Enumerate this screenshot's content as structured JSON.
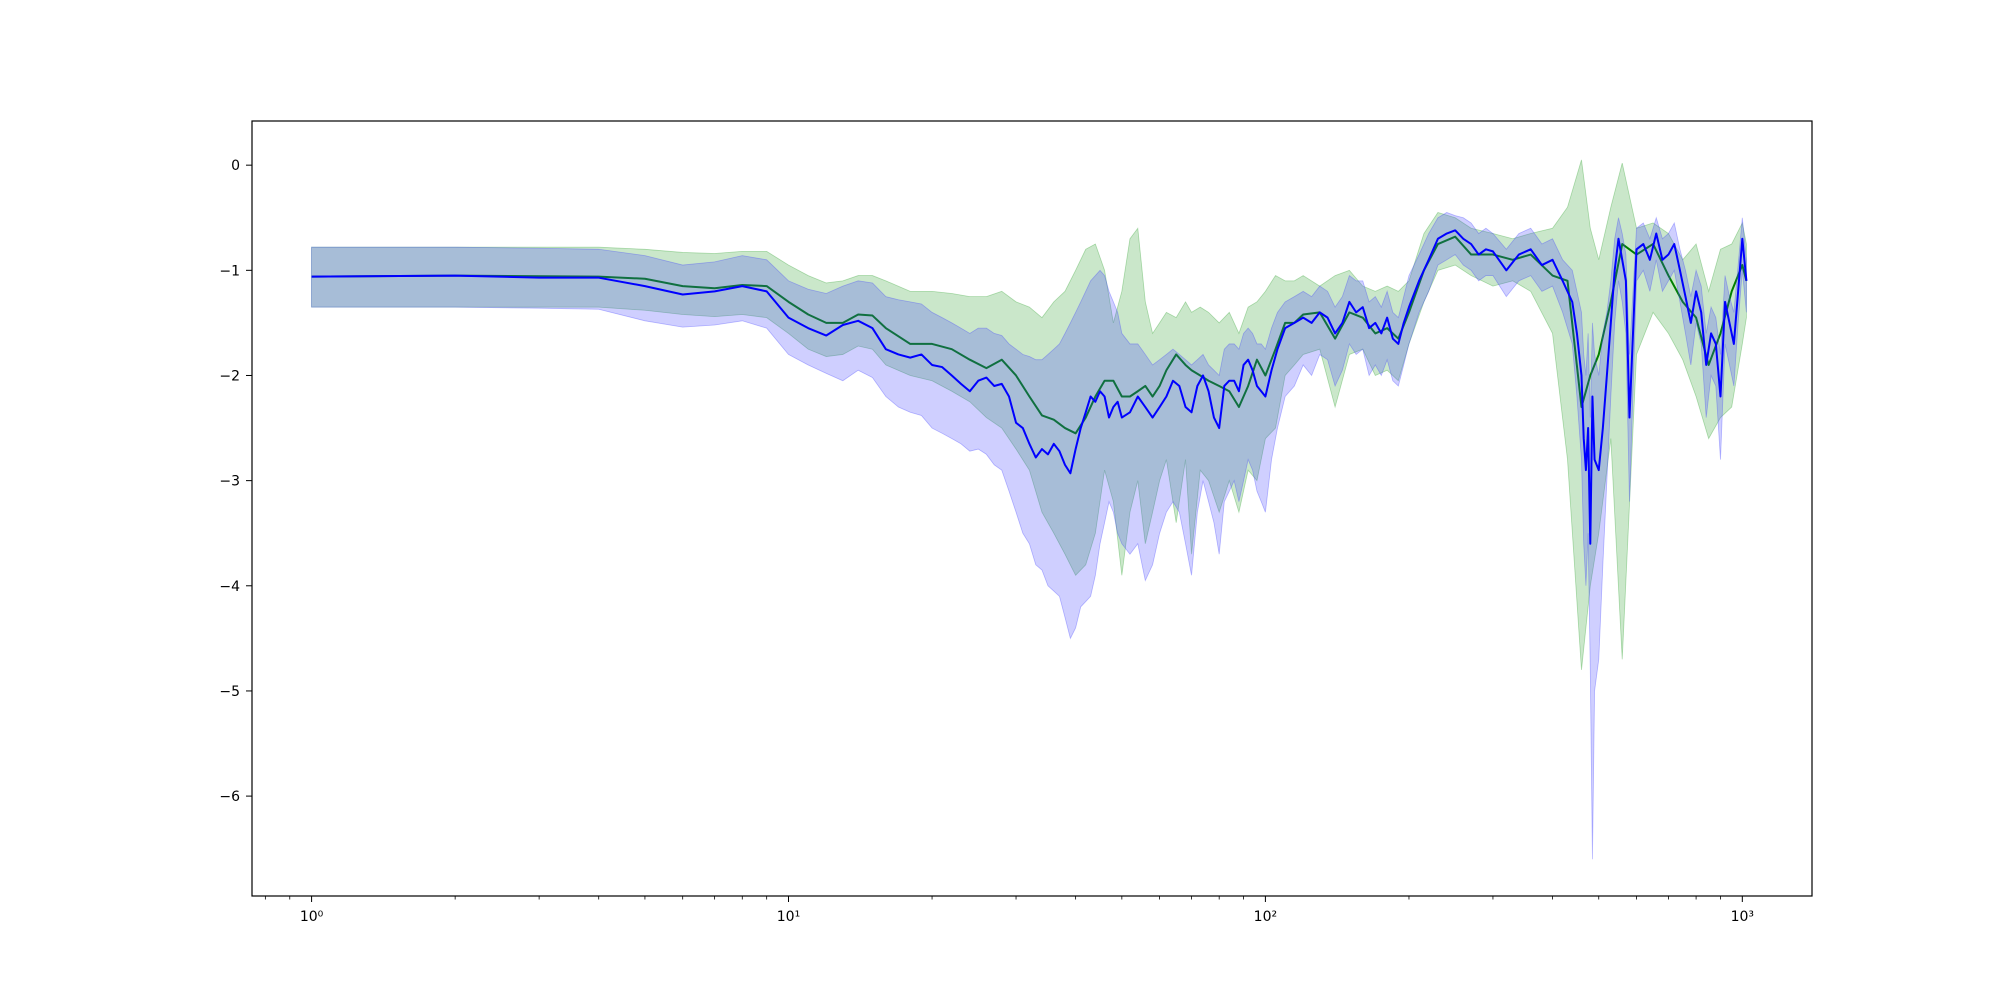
{
  "chart_data": {
    "type": "line",
    "title": "",
    "xlabel": "",
    "ylabel": "",
    "x_scale": "log",
    "xlim": [
      0.75,
      1400
    ],
    "ylim": [
      -6.95,
      0.42
    ],
    "grid": false,
    "legend": "none",
    "x_ticks": [
      {
        "value": 1,
        "label": "10⁰"
      },
      {
        "value": 10,
        "label": "10¹"
      },
      {
        "value": 100,
        "label": "10²"
      },
      {
        "value": 1000,
        "label": "10³"
      }
    ],
    "y_ticks": [
      {
        "value": 0,
        "label": "0"
      },
      {
        "value": -1,
        "label": "−1"
      },
      {
        "value": -2,
        "label": "−2"
      },
      {
        "value": -3,
        "label": "−3"
      },
      {
        "value": -4,
        "label": "−4"
      },
      {
        "value": -5,
        "label": "−5"
      },
      {
        "value": -6,
        "label": "−6"
      }
    ],
    "series": [
      {
        "color": "#008000",
        "band_color": "#2ca02c",
        "band_opacity": 0.25,
        "x": [
          1,
          2,
          4,
          5,
          6,
          7,
          8,
          9,
          10,
          11,
          12,
          13,
          14,
          15,
          16,
          18,
          20,
          22,
          24,
          26,
          28,
          30,
          32,
          34,
          36,
          38,
          40,
          42,
          44,
          46,
          48,
          50,
          52,
          54,
          56,
          58,
          60,
          62,
          65,
          68,
          70,
          73,
          76,
          80,
          84,
          88,
          92,
          96,
          100,
          105,
          110,
          115,
          120,
          130,
          140,
          150,
          160,
          170,
          180,
          190,
          200,
          215,
          230,
          250,
          270,
          300,
          330,
          360,
          400,
          430,
          460,
          480,
          500,
          530,
          560,
          600,
          650,
          700,
          750,
          800,
          850,
          900,
          950,
          1000,
          1020
        ],
        "y": [
          -1.06,
          -1.05,
          -1.06,
          -1.08,
          -1.15,
          -1.17,
          -1.14,
          -1.15,
          -1.3,
          -1.42,
          -1.5,
          -1.5,
          -1.42,
          -1.43,
          -1.55,
          -1.7,
          -1.7,
          -1.75,
          -1.85,
          -1.93,
          -1.85,
          -2.0,
          -2.2,
          -2.38,
          -2.42,
          -2.5,
          -2.55,
          -2.4,
          -2.2,
          -2.05,
          -2.05,
          -2.2,
          -2.2,
          -2.15,
          -2.1,
          -2.2,
          -2.1,
          -1.95,
          -1.8,
          -1.9,
          -1.95,
          -2.0,
          -2.05,
          -2.1,
          -2.15,
          -2.3,
          -2.1,
          -1.85,
          -2.0,
          -1.75,
          -1.5,
          -1.5,
          -1.42,
          -1.4,
          -1.65,
          -1.4,
          -1.45,
          -1.6,
          -1.55,
          -1.65,
          -1.4,
          -1.0,
          -0.75,
          -0.68,
          -0.85,
          -0.85,
          -0.9,
          -0.85,
          -1.05,
          -1.1,
          -2.3,
          -2.0,
          -1.8,
          -1.3,
          -0.75,
          -0.85,
          -0.75,
          -1.05,
          -1.3,
          -1.45,
          -1.9,
          -1.6,
          -1.2,
          -0.95,
          -1.1
        ],
        "upper": [
          -0.78,
          -0.78,
          -0.78,
          -0.8,
          -0.83,
          -0.84,
          -0.82,
          -0.82,
          -0.95,
          -1.05,
          -1.12,
          -1.1,
          -1.05,
          -1.05,
          -1.1,
          -1.2,
          -1.2,
          -1.22,
          -1.25,
          -1.25,
          -1.2,
          -1.3,
          -1.35,
          -1.45,
          -1.3,
          -1.2,
          -1.0,
          -0.8,
          -0.75,
          -1.0,
          -1.5,
          -1.2,
          -0.7,
          -0.6,
          -1.3,
          -1.6,
          -1.5,
          -1.4,
          -1.45,
          -1.3,
          -1.4,
          -1.35,
          -1.4,
          -1.5,
          -1.4,
          -1.6,
          -1.35,
          -1.3,
          -1.2,
          -1.05,
          -1.1,
          -1.1,
          -1.05,
          -1.15,
          -1.05,
          -1.0,
          -1.15,
          -1.2,
          -1.15,
          -1.2,
          -1.1,
          -0.65,
          -0.45,
          -0.5,
          -0.6,
          -0.65,
          -0.7,
          -0.65,
          -0.6,
          -0.4,
          0.05,
          -0.6,
          -0.9,
          -0.4,
          0.02,
          -0.6,
          -0.55,
          -0.65,
          -0.9,
          -0.75,
          -1.2,
          -0.8,
          -0.75,
          -0.55,
          -0.75
        ],
        "lower": [
          -1.35,
          -1.35,
          -1.35,
          -1.38,
          -1.42,
          -1.44,
          -1.42,
          -1.45,
          -1.6,
          -1.75,
          -1.82,
          -1.8,
          -1.72,
          -1.75,
          -1.9,
          -2.0,
          -2.05,
          -2.15,
          -2.25,
          -2.4,
          -2.5,
          -2.7,
          -2.9,
          -3.3,
          -3.5,
          -3.7,
          -3.9,
          -3.8,
          -3.5,
          -2.9,
          -3.2,
          -3.9,
          -3.3,
          -3.0,
          -3.6,
          -3.3,
          -3.0,
          -2.8,
          -3.4,
          -2.8,
          -3.7,
          -2.9,
          -3.0,
          -3.3,
          -3.0,
          -3.3,
          -2.9,
          -3.0,
          -2.6,
          -2.5,
          -2.0,
          -1.9,
          -1.8,
          -1.75,
          -2.3,
          -1.8,
          -1.75,
          -2.0,
          -1.95,
          -2.05,
          -1.7,
          -1.3,
          -1.0,
          -0.95,
          -1.05,
          -1.15,
          -1.1,
          -1.2,
          -1.6,
          -2.8,
          -4.8,
          -4.0,
          -3.5,
          -2.6,
          -4.7,
          -1.8,
          -1.4,
          -1.6,
          -1.85,
          -2.2,
          -2.6,
          -2.4,
          -2.3,
          -1.7,
          -1.45
        ]
      },
      {
        "color": "#0000ff",
        "band_color": "#4040ff",
        "band_opacity": 0.25,
        "x": [
          1,
          2,
          3,
          4,
          5,
          6,
          7,
          8,
          9,
          10,
          11,
          12,
          13,
          14,
          15,
          16,
          17,
          18,
          19,
          20,
          21,
          22,
          23,
          24,
          25,
          26,
          27,
          28,
          29,
          30,
          31,
          32,
          33,
          34,
          35,
          36,
          37,
          38,
          39,
          40,
          41,
          42,
          43,
          44,
          45,
          46,
          47,
          48,
          49,
          50,
          52,
          54,
          56,
          58,
          60,
          62,
          64,
          66,
          68,
          70,
          72,
          74,
          76,
          78,
          80,
          82,
          84,
          86,
          88,
          90,
          92,
          94,
          96,
          98,
          100,
          103,
          106,
          110,
          115,
          120,
          125,
          130,
          135,
          140,
          145,
          150,
          155,
          160,
          165,
          170,
          175,
          180,
          185,
          190,
          195,
          200,
          210,
          220,
          230,
          240,
          250,
          260,
          270,
          280,
          290,
          300,
          320,
          340,
          360,
          380,
          400,
          420,
          440,
          450,
          460,
          465,
          470,
          475,
          480,
          485,
          490,
          500,
          510,
          520,
          530,
          540,
          550,
          560,
          570,
          580,
          600,
          620,
          640,
          660,
          680,
          700,
          720,
          740,
          760,
          780,
          800,
          820,
          840,
          860,
          880,
          900,
          920,
          940,
          960,
          980,
          1000,
          1010,
          1020
        ],
        "y": [
          -1.06,
          -1.05,
          -1.07,
          -1.07,
          -1.15,
          -1.23,
          -1.2,
          -1.15,
          -1.2,
          -1.45,
          -1.55,
          -1.62,
          -1.52,
          -1.48,
          -1.55,
          -1.75,
          -1.8,
          -1.83,
          -1.8,
          -1.9,
          -1.92,
          -2.0,
          -2.08,
          -2.15,
          -2.05,
          -2.02,
          -2.1,
          -2.08,
          -2.2,
          -2.45,
          -2.5,
          -2.65,
          -2.78,
          -2.7,
          -2.75,
          -2.65,
          -2.72,
          -2.85,
          -2.93,
          -2.7,
          -2.5,
          -2.35,
          -2.2,
          -2.25,
          -2.15,
          -2.2,
          -2.4,
          -2.3,
          -2.25,
          -2.4,
          -2.35,
          -2.2,
          -2.3,
          -2.4,
          -2.3,
          -2.2,
          -2.05,
          -2.1,
          -2.3,
          -2.35,
          -2.1,
          -2.0,
          -2.15,
          -2.4,
          -2.5,
          -2.1,
          -2.05,
          -2.05,
          -2.15,
          -1.9,
          -1.85,
          -1.95,
          -2.1,
          -2.15,
          -2.2,
          -1.95,
          -1.75,
          -1.55,
          -1.5,
          -1.45,
          -1.5,
          -1.4,
          -1.45,
          -1.6,
          -1.5,
          -1.3,
          -1.4,
          -1.35,
          -1.55,
          -1.5,
          -1.6,
          -1.45,
          -1.65,
          -1.7,
          -1.5,
          -1.35,
          -1.1,
          -0.9,
          -0.7,
          -0.65,
          -0.62,
          -0.7,
          -0.75,
          -0.85,
          -0.8,
          -0.82,
          -1.0,
          -0.85,
          -0.8,
          -0.95,
          -0.9,
          -1.1,
          -1.3,
          -1.6,
          -2.0,
          -2.6,
          -2.9,
          -2.5,
          -3.6,
          -2.2,
          -2.8,
          -2.9,
          -2.5,
          -2.0,
          -1.5,
          -1.0,
          -0.7,
          -0.9,
          -1.1,
          -2.4,
          -0.8,
          -0.75,
          -0.9,
          -0.65,
          -0.9,
          -0.85,
          -0.75,
          -1.0,
          -1.25,
          -1.5,
          -1.2,
          -1.4,
          -1.9,
          -1.6,
          -1.7,
          -2.2,
          -1.3,
          -1.5,
          -1.7,
          -1.2,
          -0.7,
          -0.9,
          -1.1
        ],
        "upper": [
          -0.78,
          -0.78,
          -0.79,
          -0.8,
          -0.86,
          -0.95,
          -0.92,
          -0.86,
          -0.9,
          -1.1,
          -1.18,
          -1.22,
          -1.15,
          -1.1,
          -1.12,
          -1.25,
          -1.28,
          -1.3,
          -1.32,
          -1.4,
          -1.45,
          -1.5,
          -1.55,
          -1.6,
          -1.55,
          -1.55,
          -1.6,
          -1.62,
          -1.7,
          -1.75,
          -1.8,
          -1.82,
          -1.85,
          -1.85,
          -1.8,
          -1.75,
          -1.7,
          -1.6,
          -1.5,
          -1.4,
          -1.3,
          -1.2,
          -1.1,
          -1.05,
          -1.0,
          -1.05,
          -1.2,
          -1.3,
          -1.4,
          -1.6,
          -1.7,
          -1.7,
          -1.8,
          -1.9,
          -1.85,
          -1.8,
          -1.75,
          -1.8,
          -1.85,
          -1.9,
          -1.85,
          -1.8,
          -1.9,
          -1.95,
          -2.0,
          -1.75,
          -1.7,
          -1.7,
          -1.75,
          -1.6,
          -1.55,
          -1.6,
          -1.7,
          -1.7,
          -1.75,
          -1.55,
          -1.4,
          -1.3,
          -1.25,
          -1.2,
          -1.25,
          -1.15,
          -1.2,
          -1.35,
          -1.25,
          -1.05,
          -1.1,
          -1.1,
          -1.3,
          -1.25,
          -1.35,
          -1.2,
          -1.4,
          -1.45,
          -1.25,
          -1.05,
          -0.85,
          -0.65,
          -0.5,
          -0.45,
          -0.48,
          -0.5,
          -0.55,
          -0.65,
          -0.6,
          -0.65,
          -0.8,
          -0.65,
          -0.6,
          -0.75,
          -0.7,
          -0.9,
          -1.0,
          -1.2,
          -1.4,
          -1.8,
          -2.0,
          -1.6,
          -2.4,
          -1.5,
          -1.8,
          -2.0,
          -1.6,
          -1.4,
          -1.1,
          -0.7,
          -0.5,
          -0.65,
          -0.85,
          -1.8,
          -0.6,
          -0.55,
          -0.7,
          -0.5,
          -0.7,
          -0.65,
          -0.55,
          -0.8,
          -1.0,
          -1.25,
          -1.0,
          -1.15,
          -1.6,
          -1.35,
          -1.45,
          -1.8,
          -1.05,
          -1.25,
          -1.4,
          -0.95,
          -0.5,
          -0.7,
          -0.9
        ],
        "lower": [
          -1.35,
          -1.35,
          -1.36,
          -1.37,
          -1.48,
          -1.54,
          -1.52,
          -1.48,
          -1.55,
          -1.8,
          -1.9,
          -1.98,
          -2.05,
          -1.95,
          -2.02,
          -2.2,
          -2.3,
          -2.35,
          -2.38,
          -2.5,
          -2.55,
          -2.6,
          -2.65,
          -2.72,
          -2.7,
          -2.75,
          -2.85,
          -2.9,
          -3.1,
          -3.3,
          -3.5,
          -3.6,
          -3.8,
          -3.85,
          -4.0,
          -4.05,
          -4.1,
          -4.3,
          -4.5,
          -4.4,
          -4.2,
          -4.15,
          -4.1,
          -3.9,
          -3.6,
          -3.4,
          -3.2,
          -3.3,
          -3.5,
          -3.6,
          -3.7,
          -3.6,
          -3.95,
          -3.8,
          -3.5,
          -3.3,
          -3.2,
          -3.3,
          -3.6,
          -3.9,
          -3.3,
          -3.0,
          -3.2,
          -3.4,
          -3.7,
          -3.2,
          -3.1,
          -3.0,
          -3.2,
          -3.0,
          -2.8,
          -2.9,
          -3.1,
          -3.2,
          -3.3,
          -2.8,
          -2.5,
          -2.2,
          -2.1,
          -1.9,
          -2.0,
          -1.8,
          -1.85,
          -2.1,
          -1.95,
          -1.7,
          -1.8,
          -1.75,
          -2.0,
          -1.9,
          -2.0,
          -1.85,
          -2.05,
          -2.1,
          -1.9,
          -1.7,
          -1.4,
          -1.2,
          -0.95,
          -0.9,
          -0.85,
          -0.95,
          -1.0,
          -1.1,
          -1.05,
          -1.05,
          -1.25,
          -1.1,
          -1.05,
          -1.2,
          -1.15,
          -1.4,
          -1.7,
          -2.2,
          -2.8,
          -3.6,
          -4.0,
          -3.5,
          -4.8,
          -6.6,
          -5.0,
          -4.7,
          -3.8,
          -3.0,
          -2.2,
          -1.5,
          -1.1,
          -1.3,
          -1.6,
          -3.2,
          -1.1,
          -1.0,
          -1.2,
          -0.9,
          -1.2,
          -1.1,
          -1.0,
          -1.3,
          -1.6,
          -1.9,
          -1.5,
          -1.7,
          -2.4,
          -2.0,
          -2.1,
          -2.8,
          -1.7,
          -1.9,
          -2.1,
          -1.5,
          -1.0,
          -1.2,
          -1.4
        ]
      }
    ]
  }
}
